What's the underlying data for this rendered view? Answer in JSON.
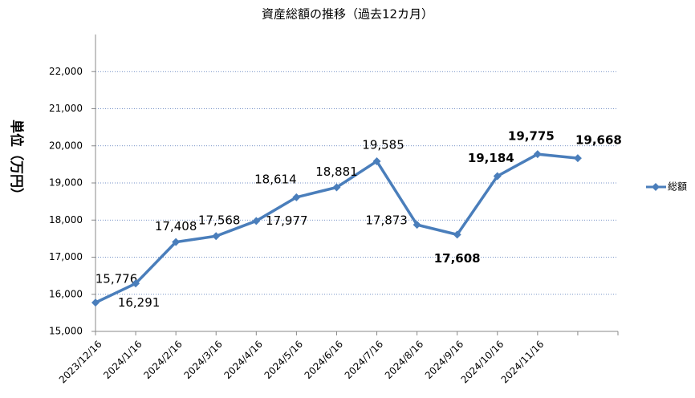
{
  "chart_data": {
    "type": "line",
    "title": "資産総額の推移（過去12カ月）",
    "y_label": "単位（万円）",
    "categories": [
      "2023/12/16",
      "2024/1/16",
      "2024/2/16",
      "2024/3/16",
      "2024/4/16",
      "2024/5/16",
      "2024/6/16",
      "2024/7/16",
      "2024/8/16",
      "2024/9/16",
      "2024/10/16",
      "2024/11/16",
      null
    ],
    "series": [
      {
        "name": "総額",
        "color": "#4a7ebb",
        "values": [
          15776,
          16291,
          17408,
          17568,
          17977,
          18614,
          18881,
          19585,
          17873,
          17608,
          19184,
          19775,
          19668
        ],
        "value_labels": [
          "15,776",
          "16,291",
          "17,408",
          "17,568",
          "17,977",
          "18,614",
          "18,881",
          "19,585",
          "17,873",
          "17,608",
          "19,184",
          "19,775",
          "19,668"
        ]
      }
    ],
    "ylim": [
      15000,
      23000
    ],
    "yticks": [
      {
        "value": 15000,
        "label": "15,000"
      },
      {
        "value": 16000,
        "label": "16,000"
      },
      {
        "value": 17000,
        "label": "17,000"
      },
      {
        "value": 18000,
        "label": "18,000"
      },
      {
        "value": 19000,
        "label": "19,000"
      },
      {
        "value": 20000,
        "label": "20,000"
      },
      {
        "value": 21000,
        "label": "21,000"
      },
      {
        "value": 22000,
        "label": "22,000"
      }
    ],
    "grid": true,
    "legend": "right"
  }
}
